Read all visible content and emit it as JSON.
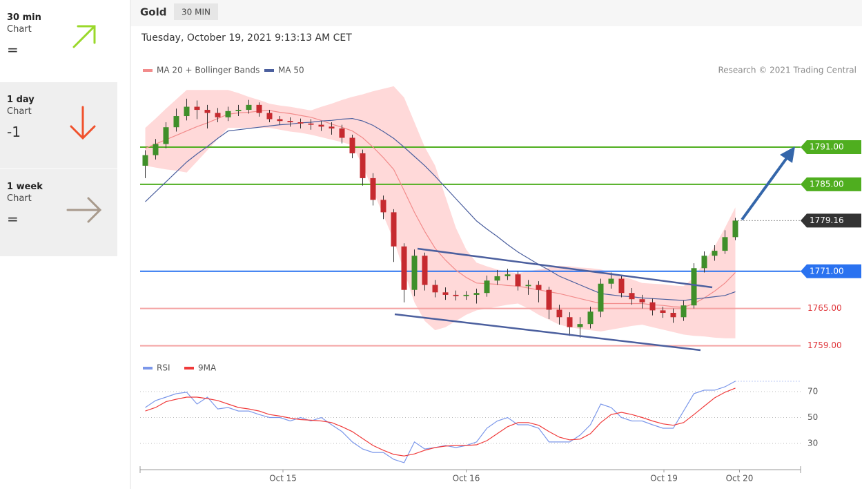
{
  "sidebar": [
    {
      "period": "30 min",
      "label": "Chart",
      "signal": "="
    },
    {
      "period": "1 day",
      "label": "Chart",
      "signal": "-1"
    },
    {
      "period": "1 week",
      "label": "Chart",
      "signal": "="
    }
  ],
  "header": {
    "instrument": "Gold",
    "timeframe": "30 MIN",
    "timestamp": "Tuesday, October 19, 2021 9:13:13 AM CET"
  },
  "chart_data": [
    {
      "type": "candlestick",
      "source": "Research © 2021 Trading Central",
      "up_color": "#3f8f2a",
      "down_color": "#c62a2f",
      "xlim": [
        -0.5,
        63.3
      ],
      "ylim": [
        1757.4,
        1801.9
      ],
      "open": [
        1788.0,
        1789.7,
        1791.5,
        1794.2,
        1796.0,
        1797.5,
        1797.0,
        1796.5,
        1795.8,
        1796.8,
        1797.0,
        1797.8,
        1796.5,
        1795.5,
        1795.2,
        1795.0,
        1794.8,
        1794.6,
        1794.3,
        1794.0,
        1792.5,
        1790.0,
        1786.0,
        1782.5,
        1780.5,
        1775.0,
        1768.0,
        1773.5,
        1768.8,
        1767.6,
        1767.2,
        1767.0,
        1767.2,
        1767.5,
        1769.5,
        1770.2,
        1770.5,
        1768.6,
        1768.8,
        1768.0,
        1764.8,
        1763.6,
        1762.0,
        1762.5,
        1764.5,
        1769.0,
        1769.8,
        1767.5,
        1766.5,
        1766.0,
        1764.7,
        1764.3,
        1763.6,
        1765.5,
        1771.5,
        1773.5,
        1774.3,
        1776.5
      ],
      "high": [
        1790.5,
        1792.3,
        1795.0,
        1797.2,
        1798.8,
        1798.5,
        1797.8,
        1797.3,
        1797.5,
        1797.8,
        1798.6,
        1798.2,
        1797.0,
        1796.0,
        1795.8,
        1795.6,
        1795.5,
        1795.2,
        1795.0,
        1794.6,
        1793.0,
        1790.6,
        1786.8,
        1783.2,
        1781.0,
        1775.5,
        1774.5,
        1774.0,
        1769.6,
        1768.4,
        1767.9,
        1767.8,
        1768.2,
        1770.3,
        1771.2,
        1771.4,
        1771.0,
        1769.6,
        1769.4,
        1768.5,
        1765.6,
        1764.4,
        1763.6,
        1765.3,
        1769.8,
        1770.8,
        1770.2,
        1768.3,
        1767.2,
        1766.6,
        1765.3,
        1765.0,
        1766.3,
        1772.3,
        1774.2,
        1775.2,
        1777.6,
        1779.6
      ],
      "low": [
        1786.0,
        1789.0,
        1790.8,
        1793.5,
        1795.3,
        1795.5,
        1794.0,
        1795.0,
        1795.2,
        1796.0,
        1796.4,
        1795.9,
        1795.0,
        1794.6,
        1794.3,
        1794.0,
        1793.8,
        1793.6,
        1793.0,
        1791.6,
        1789.2,
        1784.8,
        1781.6,
        1779.4,
        1772.5,
        1766.0,
        1767.0,
        1767.9,
        1766.8,
        1766.4,
        1766.3,
        1766.4,
        1765.8,
        1766.9,
        1768.8,
        1769.6,
        1767.9,
        1767.2,
        1766.0,
        1763.3,
        1762.4,
        1760.6,
        1760.3,
        1761.8,
        1763.6,
        1768.2,
        1766.8,
        1765.6,
        1765.0,
        1763.9,
        1763.5,
        1762.7,
        1763.0,
        1765.0,
        1770.8,
        1772.7,
        1773.8,
        1776.0
      ],
      "close": [
        1789.7,
        1791.5,
        1794.2,
        1796.0,
        1797.5,
        1797.0,
        1796.5,
        1795.8,
        1796.8,
        1797.0,
        1797.8,
        1796.5,
        1795.5,
        1795.2,
        1795.0,
        1794.8,
        1794.6,
        1794.3,
        1794.0,
        1792.5,
        1790.0,
        1786.0,
        1782.5,
        1780.5,
        1775.0,
        1768.0,
        1773.5,
        1768.8,
        1767.6,
        1767.2,
        1767.0,
        1767.2,
        1767.5,
        1769.5,
        1770.2,
        1770.5,
        1768.6,
        1768.8,
        1768.0,
        1764.8,
        1763.6,
        1762.0,
        1762.5,
        1764.5,
        1769.0,
        1769.8,
        1767.5,
        1766.5,
        1766.0,
        1764.7,
        1764.3,
        1763.6,
        1765.5,
        1771.5,
        1773.5,
        1774.3,
        1776.5,
        1779.16
      ],
      "series": [
        {
          "name": "MA 20 + Bollinger Bands",
          "color": "#f28b8b",
          "band_color": "#ffd9d9",
          "values": [
            1790.8,
            1791.5,
            1792.2,
            1792.9,
            1793.6,
            1794.3,
            1794.9,
            1795.6,
            1796.3,
            1796.5,
            1796.6,
            1796.8,
            1796.9,
            1796.6,
            1796.4,
            1796.1,
            1795.8,
            1795.3,
            1794.7,
            1794.2,
            1793.6,
            1792.5,
            1791.0,
            1789.3,
            1787.4,
            1784.0,
            1780.5,
            1777.4,
            1774.7,
            1772.8,
            1771.2,
            1770.0,
            1769.1,
            1769.0,
            1768.9,
            1768.7,
            1768.6,
            1768.3,
            1768.0,
            1767.7,
            1767.4,
            1767.0,
            1766.6,
            1766.2,
            1765.8,
            1765.8,
            1765.8,
            1765.8,
            1765.8,
            1765.6,
            1765.5,
            1765.3,
            1765.2,
            1765.8,
            1766.7,
            1767.8,
            1769.1,
            1770.8
          ],
          "upper": [
            1794.1,
            1795.6,
            1797.2,
            1798.7,
            1800.2,
            1800.2,
            1800.2,
            1800.2,
            1800.2,
            1799.7,
            1799.1,
            1798.6,
            1798.0,
            1797.7,
            1797.5,
            1797.2,
            1796.9,
            1797.5,
            1798.0,
            1798.6,
            1799.1,
            1799.5,
            1800.0,
            1800.4,
            1800.8,
            1799.0,
            1795.0,
            1791.0,
            1788.0,
            1783.0,
            1778.0,
            1774.5,
            1772.4,
            1771.8,
            1771.3,
            1770.9,
            1770.7,
            1771.0,
            1771.3,
            1771.6,
            1771.9,
            1771.8,
            1771.6,
            1771.5,
            1771.3,
            1770.8,
            1770.2,
            1769.7,
            1769.1,
            1769.0,
            1768.9,
            1768.7,
            1768.6,
            1770.0,
            1772.5,
            1775.0,
            1778.0,
            1781.3
          ],
          "lower": [
            1788.0,
            1787.7,
            1787.4,
            1787.2,
            1786.9,
            1788.7,
            1790.5,
            1792.3,
            1794.1,
            1794.1,
            1794.1,
            1794.1,
            1794.1,
            1793.8,
            1793.5,
            1793.3,
            1793.0,
            1792.6,
            1792.2,
            1791.8,
            1791.3,
            1788.0,
            1784.0,
            1780.0,
            1776.0,
            1771.0,
            1766.0,
            1763.0,
            1761.5,
            1762.0,
            1763.0,
            1764.0,
            1764.7,
            1765.0,
            1765.3,
            1765.6,
            1765.8,
            1765.0,
            1764.0,
            1763.2,
            1762.4,
            1762.0,
            1761.7,
            1761.5,
            1761.3,
            1761.6,
            1761.9,
            1762.2,
            1762.4,
            1762.0,
            1761.6,
            1761.2,
            1760.8,
            1760.6,
            1760.5,
            1760.3,
            1760.2,
            1760.2
          ]
        },
        {
          "name": "MA 50",
          "color": "#4b5f9e",
          "values": [
            1782.2,
            1783.8,
            1785.4,
            1787.0,
            1788.6,
            1789.9,
            1791.1,
            1792.4,
            1793.6,
            1793.8,
            1794.0,
            1794.2,
            1794.4,
            1794.6,
            1794.7,
            1794.9,
            1795.0,
            1795.2,
            1795.3,
            1795.5,
            1795.6,
            1795.2,
            1794.5,
            1793.5,
            1792.4,
            1791.0,
            1789.5,
            1788.0,
            1786.3,
            1784.5,
            1782.7,
            1780.9,
            1779.1,
            1777.8,
            1776.6,
            1775.3,
            1774.1,
            1773.1,
            1772.1,
            1771.2,
            1770.2,
            1769.5,
            1768.8,
            1768.1,
            1767.4,
            1767.2,
            1767.0,
            1766.9,
            1766.7,
            1766.6,
            1766.5,
            1766.4,
            1766.3,
            1766.5,
            1766.7,
            1766.9,
            1767.1,
            1767.7
          ]
        }
      ],
      "levels": [
        {
          "value": 1791,
          "label": "1791.00",
          "color": "#4fae1f",
          "box": true
        },
        {
          "value": 1785,
          "label": "1785.00",
          "color": "#4fae1f",
          "box": true
        },
        {
          "value": 1779.16,
          "color": "#333333",
          "box": true,
          "dotted": true
        },
        {
          "value": 1771,
          "label": "1771.00",
          "color": "#2a72f0",
          "box": true
        },
        {
          "value": 1765,
          "label": "1765.00",
          "color": "#f4a3a3",
          "text_color": "#e0393e",
          "box": false
        },
        {
          "value": 1759,
          "label": "1759.00",
          "color": "#f4a3a3",
          "text_color": "#e0393e",
          "box": false
        }
      ]
    },
    {
      "type": "line",
      "xlim": [
        -0.5,
        63.3
      ],
      "ylim": [
        12.4,
        81.7
      ],
      "yticks": [
        30,
        50,
        70
      ],
      "grid": true,
      "xticks": [
        {
          "value": 13.3,
          "label": "Oct 15"
        },
        {
          "value": 31.0,
          "label": "Oct 16"
        },
        {
          "value": 50.1,
          "label": "Oct 19"
        },
        {
          "value": 57.4,
          "label": "Oct 20"
        }
      ],
      "series": [
        {
          "name": "RSI",
          "color": "#7b97ea",
          "values": [
            57.7,
            63.1,
            65.7,
            68.4,
            69.5,
            60.4,
            65.7,
            56.6,
            57.7,
            55.0,
            55.0,
            52.3,
            50.0,
            50.0,
            47.3,
            50.0,
            47.3,
            50.0,
            44.4,
            39.1,
            31.1,
            25.7,
            23.0,
            23.0,
            17.7,
            15.1,
            31.1,
            25.7,
            26.8,
            28.4,
            26.8,
            28.4,
            31.1,
            41.7,
            47.3,
            50.0,
            44.4,
            44.4,
            41.7,
            31.1,
            31.1,
            31.1,
            36.4,
            44.4,
            60.4,
            57.7,
            50.0,
            47.3,
            47.3,
            44.4,
            41.7,
            41.7,
            55.0,
            68.4,
            71.1,
            71.1,
            73.7,
            78.0
          ]
        },
        {
          "name": "9MA",
          "color": "#f03a3a",
          "values": [
            55.0,
            57.7,
            62.2,
            64.1,
            65.7,
            65.7,
            64.6,
            63.1,
            60.4,
            57.7,
            56.6,
            55.0,
            52.3,
            51.1,
            49.5,
            48.4,
            47.9,
            47.3,
            46.1,
            42.9,
            39.1,
            33.7,
            28.4,
            24.7,
            21.5,
            20.3,
            21.9,
            24.7,
            26.8,
            27.9,
            28.4,
            28.4,
            28.9,
            32.1,
            37.5,
            42.9,
            46.1,
            46.1,
            44.0,
            39.1,
            34.8,
            32.7,
            33.3,
            37.5,
            46.1,
            52.3,
            54.0,
            52.3,
            50.0,
            47.3,
            45.1,
            44.0,
            46.1,
            52.3,
            58.8,
            65.2,
            69.5,
            72.7
          ]
        }
      ]
    }
  ]
}
